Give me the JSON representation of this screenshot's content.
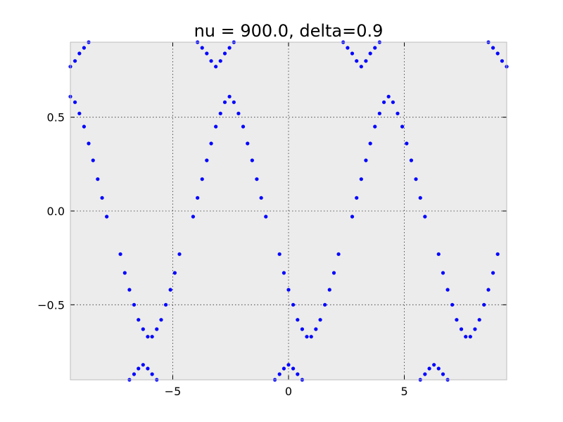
{
  "chart_data": {
    "type": "scatter",
    "title": "nu = 900.0, delta=0.9",
    "xlabel": "",
    "ylabel": "",
    "xlim": [
      -9.42,
      9.42
    ],
    "ylim": [
      -0.9,
      0.9
    ],
    "xticks": [
      -5,
      0,
      5
    ],
    "xtick_labels": [
      "−5",
      "0",
      "5"
    ],
    "yticks": [
      -0.5,
      0.0,
      0.5
    ],
    "ytick_labels": [
      "−0.5",
      "0.0",
      "0.5"
    ],
    "grid": true,
    "legend": "none",
    "series": [
      {
        "marker_color": "#0000ff",
        "x": [
          -9.42,
          -9.22,
          -9.03,
          -8.83,
          -8.63,
          -8.44,
          -8.24,
          -8.05,
          -7.85,
          -7.65,
          -7.46,
          -7.26,
          -7.07,
          -6.87,
          -6.67,
          -6.48,
          -6.28,
          -6.08,
          -5.89,
          -5.69,
          -5.5,
          -5.3,
          -5.1,
          -4.91,
          -4.71,
          -4.51,
          -4.32,
          -4.12,
          -3.93,
          -3.73,
          -3.53,
          -3.34,
          -3.14,
          -2.94,
          -2.75,
          -2.55,
          -2.36,
          -2.16,
          -1.96,
          -1.77,
          -1.57,
          -1.37,
          -1.18,
          -0.98,
          -0.79,
          -0.59,
          -0.39,
          -0.2,
          0.0,
          0.2,
          0.39,
          0.59,
          0.79,
          0.98,
          1.18,
          1.37,
          1.57,
          1.77,
          1.96,
          2.16,
          2.36,
          2.55,
          2.75,
          2.94,
          3.14,
          3.34,
          3.53,
          3.73,
          3.93,
          4.12,
          4.32,
          4.51,
          4.71,
          4.91,
          5.1,
          5.3,
          5.5,
          5.69,
          5.89,
          6.08,
          6.28,
          6.48,
          6.67,
          6.87,
          7.07,
          7.26,
          7.46,
          7.65,
          7.85,
          8.05,
          8.24,
          8.44,
          8.63,
          8.83,
          9.03,
          9.22,
          9.42,
          -9.42,
          -9.22,
          -9.03,
          -8.83,
          -8.63,
          -8.44,
          -8.24,
          -8.05,
          -7.85,
          -7.65,
          -7.46,
          -7.26,
          -7.07,
          -6.87,
          -6.67,
          -6.48,
          -6.28,
          -6.08,
          -5.89,
          -5.69,
          -5.5,
          -5.3,
          -5.1,
          -4.91,
          -4.71,
          -4.51,
          -4.32,
          -4.12,
          -3.93,
          -3.73,
          -3.53,
          -3.34,
          -3.14,
          -2.94,
          -2.75,
          -2.55,
          -2.36,
          -2.16,
          -1.96,
          -1.77,
          -1.57,
          -1.37,
          -1.18,
          -0.98,
          -0.79,
          -0.59,
          -0.39,
          -0.2,
          0.0,
          0.2,
          0.39,
          0.59,
          0.79,
          0.98,
          1.18,
          1.37,
          1.57,
          1.77,
          1.96,
          2.16,
          2.36,
          2.55,
          2.75,
          2.94,
          3.14,
          3.34,
          3.53,
          3.73,
          3.93,
          4.12,
          4.32,
          4.51,
          4.71,
          4.91,
          5.1,
          5.3,
          5.5,
          5.69,
          5.89,
          6.08,
          6.28,
          6.48,
          6.67,
          6.87,
          7.07,
          7.26,
          7.46,
          7.65,
          7.85,
          8.05,
          8.24,
          8.44,
          8.63,
          8.83,
          9.03,
          9.22,
          9.42
        ],
        "y": [
          0.61,
          0.58,
          0.52,
          0.45,
          0.36,
          0.27,
          0.17,
          0.07,
          -0.03,
          null,
          null,
          -0.23,
          -0.33,
          -0.42,
          -0.5,
          -0.58,
          -0.63,
          -0.67,
          -0.67,
          -0.63,
          -0.58,
          -0.5,
          -0.42,
          -0.33,
          -0.23,
          null,
          null,
          -0.03,
          0.07,
          0.17,
          0.27,
          0.36,
          0.45,
          0.52,
          0.58,
          0.61,
          0.58,
          0.52,
          0.45,
          0.36,
          0.27,
          0.17,
          0.07,
          -0.03,
          null,
          null,
          -0.23,
          -0.33,
          -0.42,
          -0.5,
          -0.58,
          -0.63,
          -0.67,
          -0.67,
          -0.63,
          -0.58,
          -0.5,
          -0.42,
          -0.33,
          -0.23,
          null,
          null,
          -0.03,
          0.07,
          0.17,
          0.27,
          0.36,
          0.45,
          0.52,
          0.58,
          0.61,
          0.58,
          0.52,
          0.45,
          0.36,
          0.27,
          0.17,
          0.07,
          -0.03,
          null,
          null,
          -0.23,
          -0.33,
          -0.42,
          -0.5,
          -0.58,
          -0.63,
          -0.67,
          -0.67,
          -0.63,
          -0.58,
          -0.5,
          -0.42,
          -0.33,
          -0.23,
          null,
          null,
          0.77,
          0.8,
          0.84,
          0.87,
          0.9,
          null,
          null,
          null,
          null,
          null,
          null,
          null,
          null,
          -0.9,
          -0.87,
          -0.84,
          -0.82,
          -0.84,
          -0.87,
          -0.9,
          null,
          null,
          null,
          null,
          null,
          null,
          null,
          null,
          0.9,
          0.87,
          0.84,
          0.8,
          0.77,
          0.8,
          0.84,
          0.87,
          0.9,
          null,
          null,
          null,
          null,
          null,
          null,
          null,
          null,
          -0.9,
          -0.87,
          -0.84,
          -0.82,
          -0.84,
          -0.87,
          -0.9,
          null,
          null,
          null,
          null,
          null,
          null,
          null,
          null,
          0.9,
          0.87,
          0.84,
          0.8,
          0.77,
          0.8,
          0.84,
          0.87,
          0.9,
          null,
          null,
          null,
          null,
          null,
          null,
          null,
          null,
          -0.9,
          -0.87,
          -0.84,
          -0.82,
          -0.84,
          -0.87,
          -0.9,
          null,
          null,
          null,
          null,
          null,
          null,
          null,
          null,
          0.9,
          0.87,
          0.84,
          0.8,
          0.77
        ]
      }
    ]
  }
}
